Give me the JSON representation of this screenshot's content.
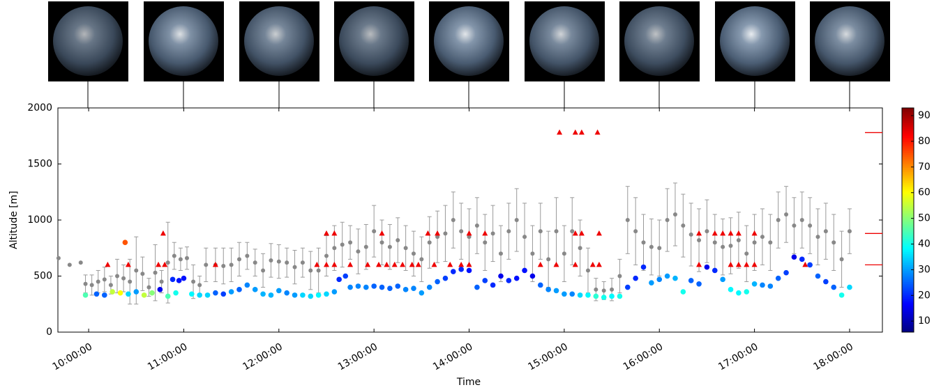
{
  "chart_data": {
    "type": "scatter",
    "xlabel": "Time",
    "ylabel": "Altitude [m]",
    "xlim": [
      "09:40:36",
      "18:20:42"
    ],
    "ylim": [
      0,
      2000
    ],
    "xticks": [
      "10:00:00",
      "11:00:00",
      "12:00:00",
      "13:00:00",
      "14:00:00",
      "15:00:00",
      "16:00:00",
      "17:00:00",
      "18:00:00"
    ],
    "yticks": [
      0,
      500,
      1000,
      1500,
      2000
    ],
    "colormap": "jet",
    "clim": [
      5.7,
      93
    ],
    "cticks": [
      10,
      20,
      30,
      40,
      50,
      60,
      70,
      80,
      90
    ],
    "series": [
      {
        "kind": "errorbar",
        "color": "#888888",
        "x": [
          "09:41:00",
          "09:48:00",
          "09:55:00",
          "09:58:00",
          "10:02:00",
          "10:06:00",
          "10:10:00",
          "10:14:00",
          "10:18:00",
          "10:22:00",
          "10:26:00",
          "10:30:00",
          "10:34:00",
          "10:38:00",
          "10:42:00",
          "10:46:00",
          "10:50:00",
          "10:54:00",
          "10:58:00",
          "11:02:00",
          "11:06:00",
          "11:10:00",
          "11:14:00",
          "11:20:00",
          "11:25:00",
          "11:30:00",
          "11:35:00",
          "11:40:00",
          "11:45:00",
          "11:50:00",
          "11:55:00",
          "12:00:00",
          "12:05:00",
          "12:10:00",
          "12:15:00",
          "12:20:00",
          "12:25:00",
          "12:30:00",
          "12:35:00",
          "12:40:00",
          "12:45:00",
          "12:50:00",
          "12:55:00",
          "13:00:00",
          "13:05:00",
          "13:10:00",
          "13:15:00",
          "13:20:00",
          "13:25:00",
          "13:30:00",
          "13:35:00",
          "13:40:00",
          "13:45:00",
          "13:50:00",
          "13:55:00",
          "14:00:00",
          "14:05:00",
          "14:10:00",
          "14:15:00",
          "14:20:00",
          "14:25:00",
          "14:30:00",
          "14:35:00",
          "14:40:00",
          "14:45:00",
          "14:50:00",
          "14:55:00",
          "15:00:00",
          "15:05:00",
          "15:10:00",
          "15:15:00",
          "15:20:00",
          "15:25:00",
          "15:30:00",
          "15:35:00",
          "15:40:00",
          "15:45:00",
          "15:50:00",
          "15:55:00",
          "16:00:00",
          "16:05:00",
          "16:10:00",
          "16:15:00",
          "16:20:00",
          "16:25:00",
          "16:30:00",
          "16:35:00",
          "16:40:00",
          "16:45:00",
          "16:50:00",
          "16:55:00",
          "17:00:00",
          "17:05:00",
          "17:10:00",
          "17:15:00",
          "17:20:00",
          "17:25:00",
          "17:30:00",
          "17:35:00",
          "17:40:00",
          "17:45:00",
          "17:50:00",
          "17:55:00",
          "18:00:00"
        ],
        "values": [
          660,
          600,
          620,
          430,
          420,
          450,
          470,
          420,
          500,
          480,
          450,
          550,
          520,
          400,
          530,
          450,
          620,
          680,
          650,
          660,
          450,
          420,
          600,
          600,
          590,
          600,
          650,
          680,
          620,
          550,
          640,
          630,
          620,
          580,
          620,
          550,
          550,
          680,
          750,
          780,
          800,
          720,
          760,
          900,
          800,
          760,
          820,
          750,
          700,
          650,
          800,
          850,
          880,
          1000,
          900,
          850,
          950,
          800,
          880,
          700,
          900,
          1000,
          850,
          700,
          900,
          650,
          900,
          700,
          900,
          750,
          550,
          380,
          370,
          380,
          500,
          1000,
          900,
          800,
          760,
          750,
          1000,
          1050,
          950,
          870,
          820,
          900,
          800,
          760,
          770,
          820,
          700,
          800,
          850,
          800,
          1000,
          1050,
          950,
          1000,
          950,
          850,
          900,
          800,
          650,
          900
        ],
        "errors": [
          0,
          0,
          0,
          80,
          90,
          100,
          110,
          80,
          150,
          120,
          200,
          300,
          150,
          80,
          250,
          100,
          360,
          120,
          100,
          100,
          150,
          80,
          150,
          150,
          160,
          150,
          150,
          120,
          120,
          150,
          150,
          150,
          130,
          150,
          130,
          170,
          200,
          180,
          200,
          200,
          150,
          200,
          200,
          230,
          200,
          200,
          200,
          200,
          200,
          200,
          230,
          230,
          250,
          250,
          250,
          250,
          250,
          250,
          250,
          250,
          250,
          280,
          300,
          250,
          250,
          250,
          300,
          250,
          300,
          250,
          200,
          100,
          80,
          100,
          150,
          300,
          300,
          250,
          250,
          250,
          280,
          280,
          280,
          280,
          280,
          280,
          250,
          250,
          250,
          250,
          250,
          250,
          250,
          250,
          250,
          250,
          250,
          250,
          250,
          250,
          250,
          250,
          250,
          200
        ]
      },
      {
        "kind": "colored",
        "x": [
          "09:58:00",
          "10:05:00",
          "10:10:00",
          "10:15:00",
          "10:20:00",
          "10:23:00",
          "10:25:00",
          "10:30:00",
          "10:35:00",
          "10:40:00",
          "10:45:00",
          "10:50:00",
          "10:53:00",
          "10:55:00",
          "10:57:00",
          "11:00:00",
          "11:05:00",
          "11:10:00",
          "11:15:00",
          "11:20:00",
          "11:25:00",
          "11:30:00",
          "11:35:00",
          "11:40:00",
          "11:45:00",
          "11:50:00",
          "11:55:00",
          "12:00:00",
          "12:05:00",
          "12:10:00",
          "12:15:00",
          "12:20:00",
          "12:25:00",
          "12:30:00",
          "12:35:00",
          "12:38:00",
          "12:42:00",
          "12:45:00",
          "12:50:00",
          "12:55:00",
          "13:00:00",
          "13:05:00",
          "13:10:00",
          "13:15:00",
          "13:20:00",
          "13:25:00",
          "13:30:00",
          "13:35:00",
          "13:40:00",
          "13:45:00",
          "13:50:00",
          "13:55:00",
          "14:00:00",
          "14:05:00",
          "14:10:00",
          "14:15:00",
          "14:20:00",
          "14:25:00",
          "14:30:00",
          "14:35:00",
          "14:40:00",
          "14:45:00",
          "14:50:00",
          "14:55:00",
          "15:00:00",
          "15:05:00",
          "15:10:00",
          "15:15:00",
          "15:20:00",
          "15:25:00",
          "15:30:00",
          "15:35:00",
          "15:40:00",
          "15:45:00",
          "15:50:00",
          "15:55:00",
          "16:00:00",
          "16:05:00",
          "16:10:00",
          "16:15:00",
          "16:20:00",
          "16:25:00",
          "16:30:00",
          "16:35:00",
          "16:40:00",
          "16:45:00",
          "16:50:00",
          "16:55:00",
          "17:00:00",
          "17:05:00",
          "17:10:00",
          "17:15:00",
          "17:20:00",
          "17:25:00",
          "17:30:00",
          "17:35:00",
          "17:40:00",
          "17:45:00",
          "17:50:00",
          "17:55:00",
          "18:00:00"
        ],
        "values": [
          330,
          340,
          330,
          360,
          350,
          800,
          340,
          360,
          330,
          350,
          380,
          320,
          470,
          350,
          460,
          480,
          340,
          330,
          330,
          350,
          340,
          360,
          380,
          420,
          380,
          340,
          330,
          370,
          350,
          330,
          330,
          320,
          330,
          340,
          360,
          470,
          500,
          400,
          410,
          400,
          410,
          400,
          390,
          410,
          380,
          390,
          350,
          400,
          450,
          480,
          540,
          560,
          550,
          400,
          460,
          420,
          500,
          460,
          480,
          550,
          500,
          420,
          380,
          370,
          340,
          340,
          330,
          330,
          320,
          310,
          320,
          320,
          400,
          480,
          580,
          440,
          470,
          500,
          480,
          360,
          460,
          430,
          580,
          550,
          470,
          380,
          350,
          360,
          430,
          420,
          410,
          480,
          530,
          670,
          650,
          600,
          500,
          450,
          400,
          330,
          400
        ],
        "c": [
          45,
          25,
          25,
          55,
          60,
          75,
          35,
          30,
          55,
          50,
          15,
          45,
          20,
          40,
          18,
          18,
          38,
          35,
          35,
          25,
          22,
          30,
          25,
          28,
          30,
          32,
          32,
          30,
          28,
          30,
          35,
          35,
          38,
          35,
          30,
          20,
          22,
          28,
          28,
          28,
          25,
          25,
          25,
          25,
          28,
          28,
          30,
          28,
          25,
          22,
          20,
          20,
          18,
          25,
          22,
          20,
          15,
          20,
          18,
          18,
          15,
          25,
          28,
          30,
          30,
          28,
          35,
          38,
          42,
          40,
          38,
          40,
          22,
          20,
          20,
          30,
          28,
          30,
          32,
          40,
          25,
          25,
          15,
          20,
          30,
          38,
          38,
          40,
          32,
          28,
          28,
          25,
          22,
          15,
          20,
          22,
          25,
          22,
          25,
          40,
          35
        ]
      },
      {
        "kind": "triangle",
        "color": "#ee0000",
        "x": [
          "10:12:00",
          "10:25:00",
          "10:44:00",
          "10:47:00",
          "10:48:00",
          "11:20:00",
          "12:24:00",
          "12:30:00",
          "12:30:00",
          "12:35:00",
          "12:35:00",
          "12:45:00",
          "12:56:00",
          "13:03:00",
          "13:05:00",
          "13:08:00",
          "13:13:00",
          "13:18:00",
          "13:24:00",
          "13:28:00",
          "13:34:00",
          "13:40:00",
          "13:38:00",
          "13:48:00",
          "13:55:00",
          "14:00:00",
          "14:00:00",
          "14:10:00",
          "14:45:00",
          "14:55:00",
          "14:57:00",
          "15:07:00",
          "15:11:00",
          "15:21:00",
          "15:07:00",
          "15:11:00",
          "15:07:00",
          "15:18:00",
          "15:22:00",
          "15:22:00",
          "16:25:00",
          "16:25:00",
          "16:35:00",
          "16:40:00",
          "16:45:00",
          "16:50:00",
          "16:45:00",
          "16:50:00",
          "16:55:00",
          "17:00:00",
          "17:00:00",
          "17:32:00"
        ],
        "values": [
          600,
          600,
          600,
          880,
          600,
          600,
          600,
          880,
          600,
          880,
          600,
          600,
          600,
          600,
          880,
          600,
          600,
          600,
          600,
          600,
          880,
          880,
          600,
          600,
          600,
          880,
          600,
          880,
          600,
          600,
          1780,
          1780,
          1780,
          1780,
          880,
          880,
          600,
          600,
          600,
          880,
          880,
          600,
          880,
          880,
          880,
          880,
          600,
          600,
          600,
          880,
          600,
          600
        ]
      }
    ],
    "right_markers": {
      "color": "#ee0000",
      "values": [
        1780,
        880,
        600
      ]
    }
  }
}
